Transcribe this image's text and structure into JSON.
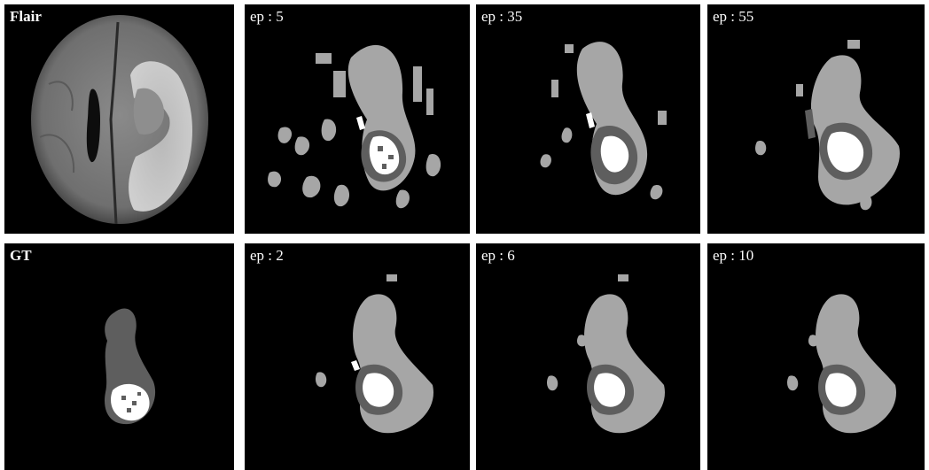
{
  "panels": {
    "flair": {
      "label": "Flair"
    },
    "top2": {
      "label": "ep : 5"
    },
    "top3": {
      "label": "ep : 35"
    },
    "top4": {
      "label": "ep : 55"
    },
    "gt": {
      "label": "GT"
    },
    "bot2": {
      "label": "ep : 2"
    },
    "bot3": {
      "label": "ep : 6"
    },
    "bot4": {
      "label": "ep : 10"
    }
  },
  "colors": {
    "background": "#000000",
    "edema": "#a6a6a6",
    "necrotic": "#5e5e5e",
    "enhancing": "#ffffff"
  }
}
